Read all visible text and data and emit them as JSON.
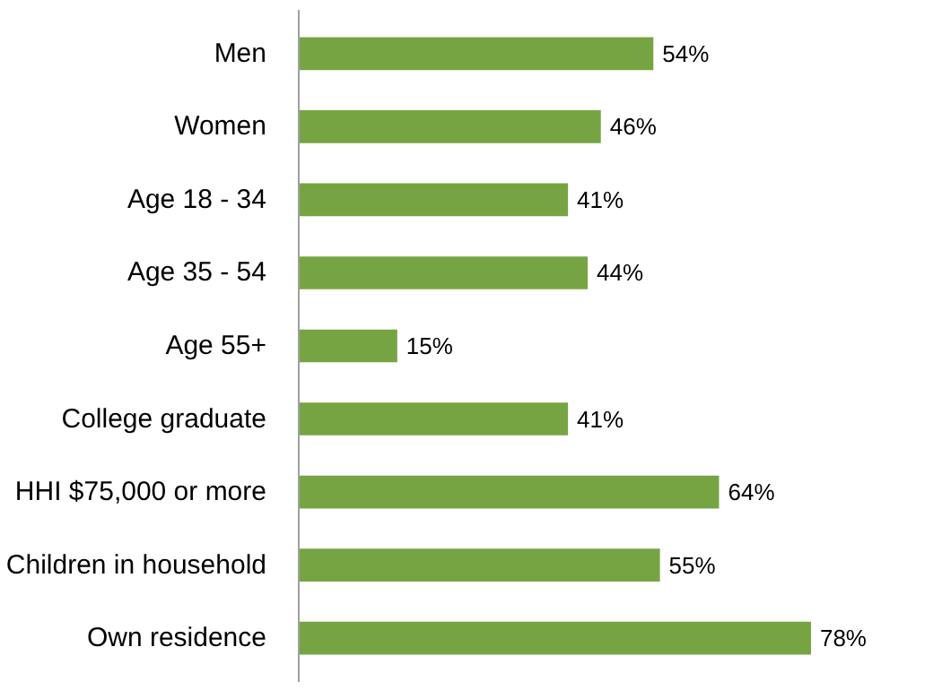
{
  "chart_data": {
    "type": "bar",
    "orientation": "horizontal",
    "categories": [
      "Men",
      "Women",
      "Age 18 - 34",
      "Age 35 - 54",
      "Age 55+",
      "College graduate",
      "HHI $75,000 or more",
      "Children in household",
      "Own residence"
    ],
    "values": [
      54,
      46,
      41,
      44,
      15,
      41,
      64,
      55,
      78
    ],
    "value_labels": [
      "54%",
      "46%",
      "41%",
      "44%",
      "15%",
      "41%",
      "64%",
      "55%",
      "78%"
    ],
    "color": "#77a443",
    "grid": false
  }
}
